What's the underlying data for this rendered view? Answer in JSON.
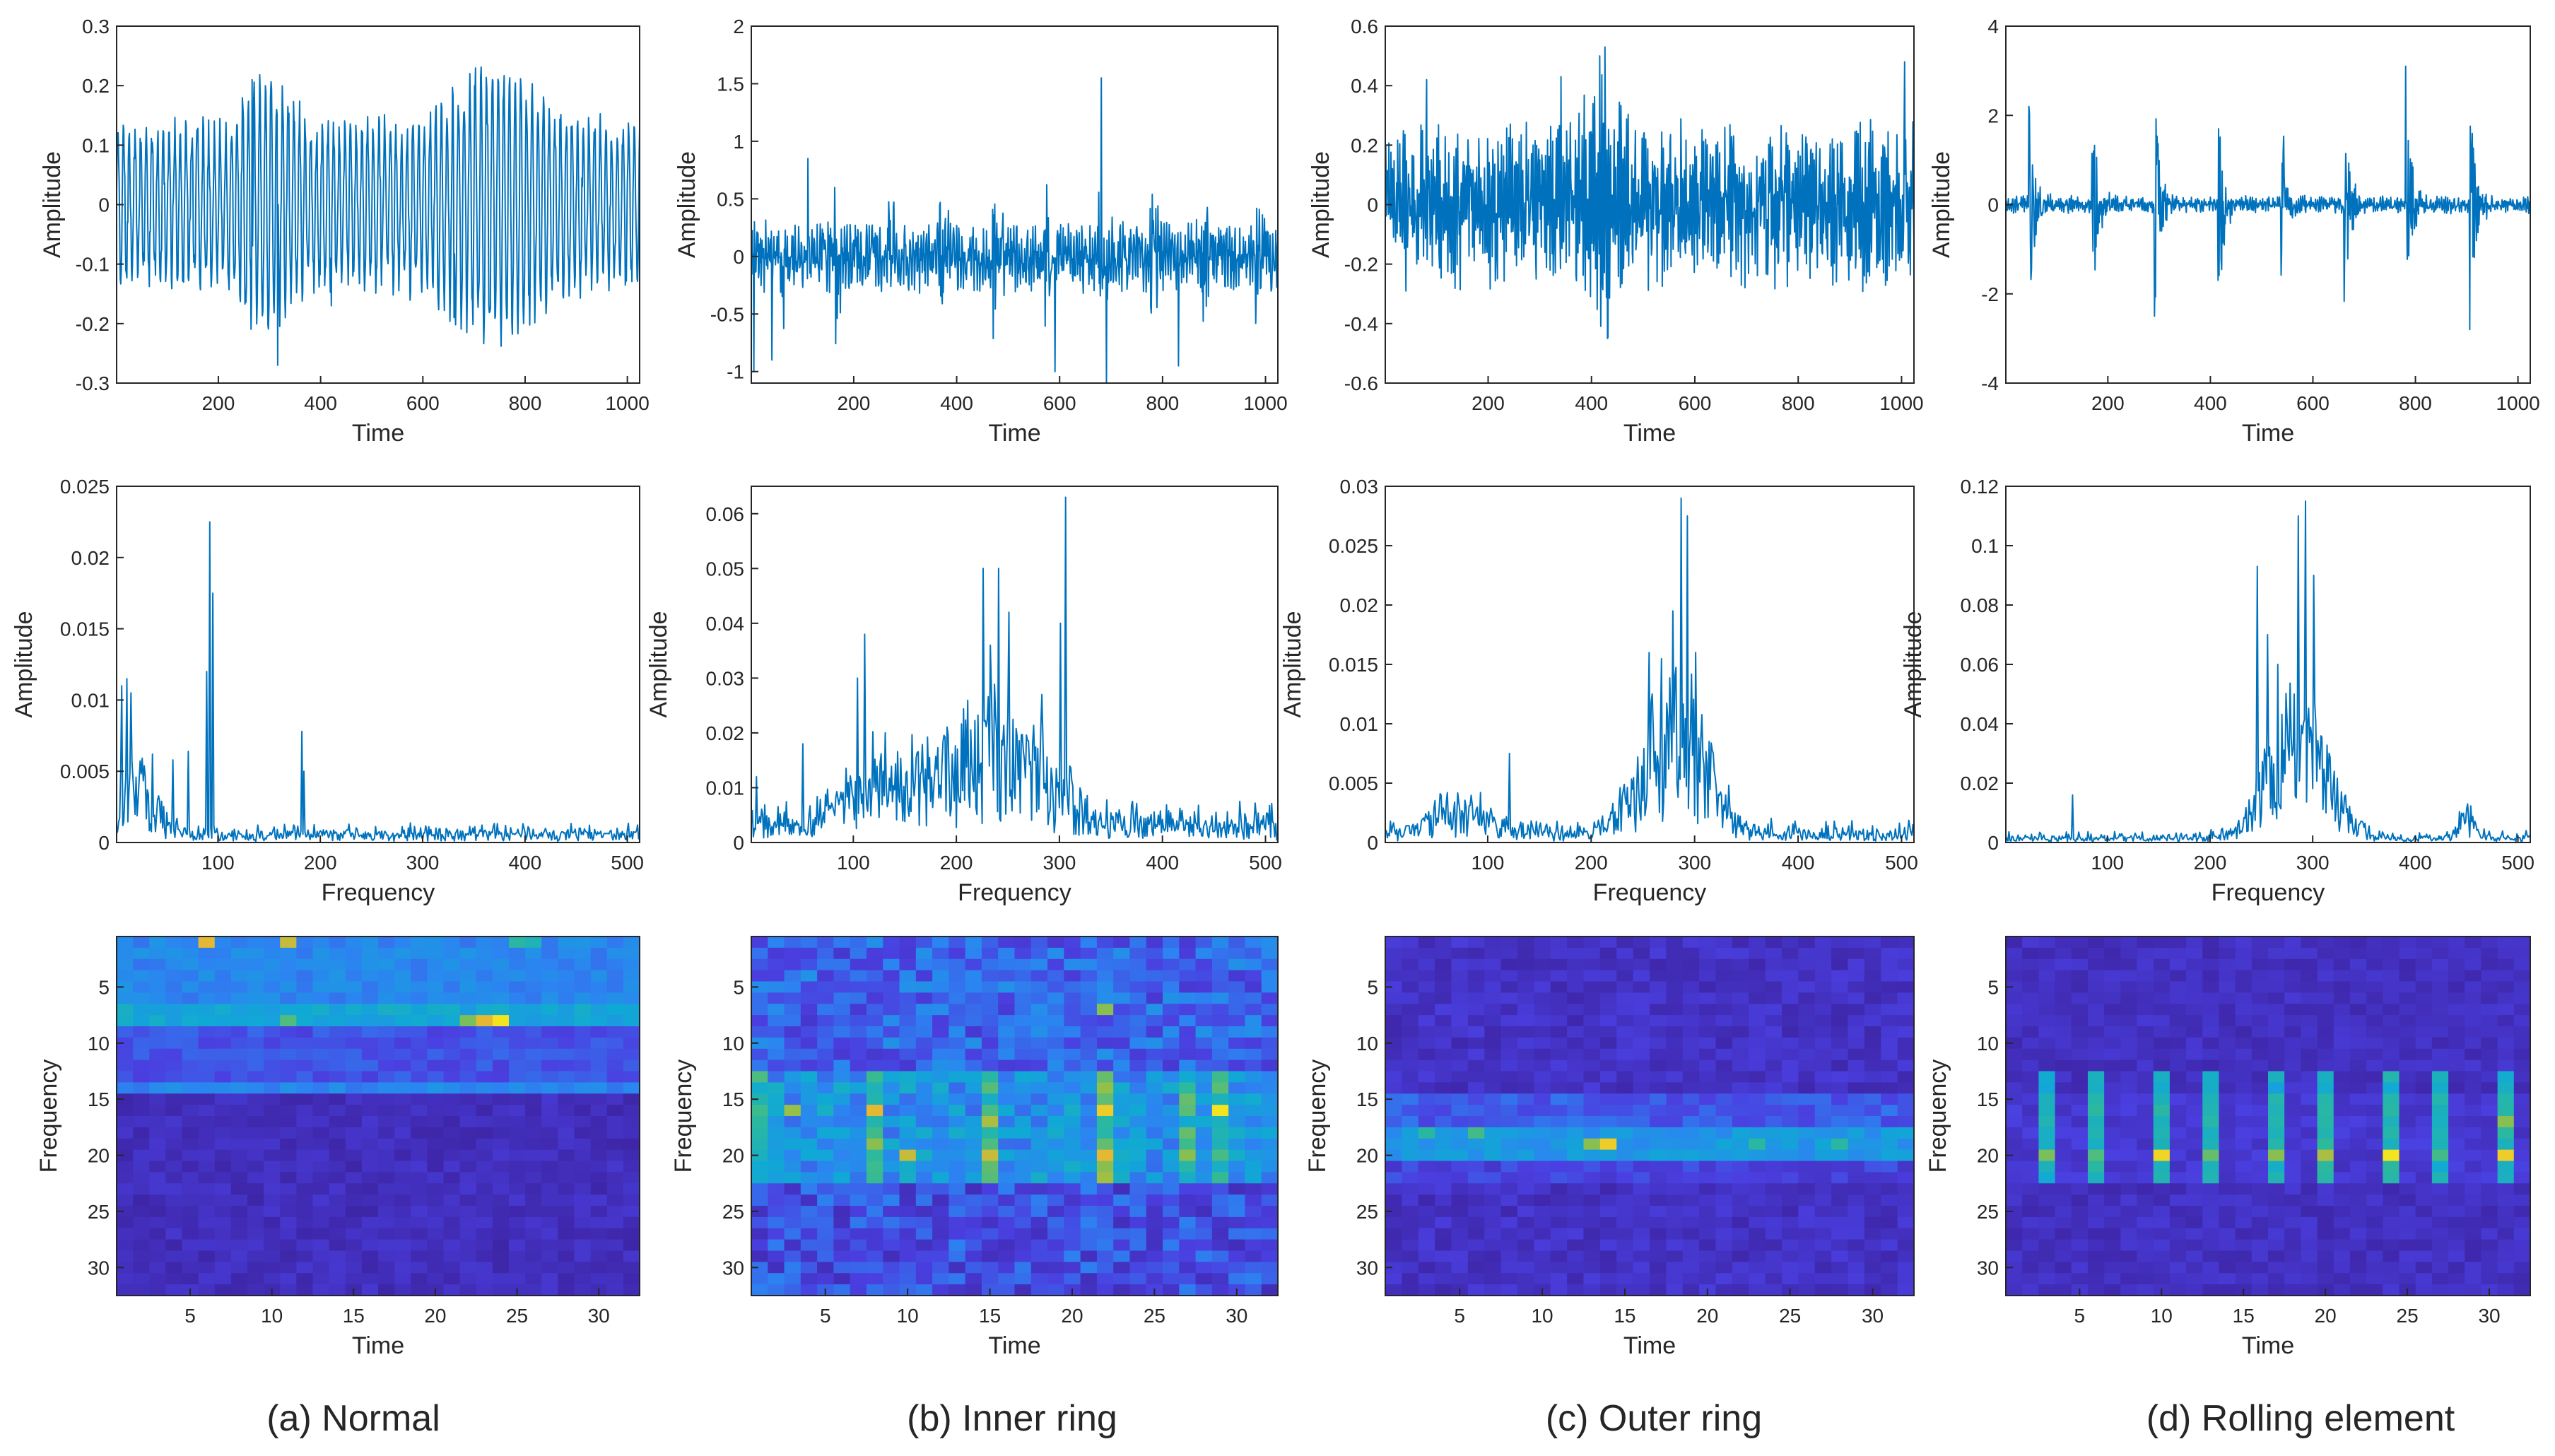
{
  "figure": {
    "columns": [
      {
        "id": "normal",
        "caption": "(a) Normal"
      },
      {
        "id": "inner",
        "caption": "(b) Inner ring"
      },
      {
        "id": "outer",
        "caption": "(c) Outer ring"
      },
      {
        "id": "rolling",
        "caption": "(d) Rolling element"
      }
    ],
    "colors": {
      "line": "#0072BD",
      "axis": "#262626",
      "colormap": "parula",
      "colormap_stops": [
        "#3E26A8",
        "#4A3FE0",
        "#2C84F1",
        "#10A9D5",
        "#2EBA99",
        "#93C049",
        "#E9B832",
        "#F9FB15"
      ]
    }
  },
  "chart_data": [
    {
      "type": "line",
      "panel": "time-normal",
      "xlabel": "Time",
      "ylabel": "Amplitude",
      "xlim": [
        1,
        1024
      ],
      "ylim": [
        -0.3,
        0.3
      ],
      "xticks": [
        200,
        400,
        600,
        800,
        1000
      ],
      "yticks": [
        -0.3,
        -0.2,
        -0.1,
        0,
        0.1,
        0.2,
        0.3
      ],
      "signal": {
        "n": 1024,
        "noise": 0.02,
        "envelope_base": 0.05,
        "tones": [
          {
            "period": 11.1,
            "amp": 0.07
          }
        ],
        "envelope_bumps": [
          {
            "center": 290,
            "width": 60,
            "amp": 0.08
          },
          {
            "center": 740,
            "width": 110,
            "amp": 0.09
          }
        ],
        "spikes": [
          {
            "at": 265,
            "value": 0.21
          },
          {
            "at": 315,
            "value": -0.27
          },
          {
            "at": 700,
            "value": 0.2
          },
          {
            "at": 735,
            "value": 0.21
          },
          {
            "at": 660,
            "value": -0.19
          },
          {
            "at": 420,
            "value": -0.17
          }
        ],
        "seed": 11
      }
    },
    {
      "type": "line",
      "panel": "time-inner",
      "xlabel": "Time",
      "ylabel": "Amplitude",
      "xlim": [
        1,
        1024
      ],
      "ylim": [
        -1.1,
        2
      ],
      "xticks": [
        200,
        400,
        600,
        800,
        1000
      ],
      "yticks": [
        -1,
        -0.5,
        0,
        0.5,
        1,
        1.5,
        2
      ],
      "signal": {
        "n": 1024,
        "noise": 0.12,
        "envelope_base": 0.05,
        "impulse_period": 102,
        "impulse_offset": 60,
        "impulse_amp": 0.65,
        "impulse_decay": 14,
        "tones": [
          {
            "period": 5.3,
            "amp": 0.08
          }
        ],
        "spikes": [
          {
            "at": 680,
            "value": 1.55
          },
          {
            "at": 690,
            "value": -1.1
          },
          {
            "at": 5,
            "value": -1.0
          },
          {
            "at": 590,
            "value": -1.0
          },
          {
            "at": 830,
            "value": -0.95
          },
          {
            "at": 110,
            "value": 0.85
          },
          {
            "at": 40,
            "value": -0.9
          }
        ],
        "seed": 23
      }
    },
    {
      "type": "line",
      "panel": "time-outer",
      "xlabel": "Time",
      "ylabel": "Amplitude",
      "xlim": [
        1,
        1024
      ],
      "ylim": [
        -0.6,
        0.6
      ],
      "xticks": [
        200,
        400,
        600,
        800,
        1000
      ],
      "yticks": [
        -0.6,
        -0.4,
        -0.2,
        0,
        0.2,
        0.4,
        0.6
      ],
      "signal": {
        "n": 1024,
        "noise": 0.11,
        "envelope_base": 0.06,
        "tones": [
          {
            "period": 3.4,
            "amp": 0.06
          }
        ],
        "envelope_bumps": [
          {
            "center": 420,
            "width": 35,
            "amp": 0.2
          }
        ],
        "spikes": [
          {
            "at": 415,
            "value": 0.5
          },
          {
            "at": 425,
            "value": 0.53
          },
          {
            "at": 430,
            "value": -0.45
          },
          {
            "at": 1005,
            "value": 0.48
          },
          {
            "at": 80,
            "value": 0.42
          },
          {
            "at": 340,
            "value": 0.43
          }
        ],
        "seed": 37
      }
    },
    {
      "type": "line",
      "panel": "time-rolling",
      "xlabel": "Time",
      "ylabel": "Amplitude",
      "xlim": [
        1,
        1024
      ],
      "ylim": [
        -4,
        4
      ],
      "xticks": [
        200,
        400,
        600,
        800,
        1000
      ],
      "yticks": [
        -4,
        -2,
        0,
        2,
        4
      ],
      "signal": {
        "n": 1024,
        "noise": 0.08,
        "envelope_base": 0.03,
        "impulse_period": 123,
        "impulse_offset": 45,
        "impulse_amp": 2.4,
        "impulse_decay": 12,
        "tones": [
          {
            "period": 4.1,
            "amp": 0.05
          }
        ],
        "spikes": [
          {
            "at": 45,
            "value": 2.2
          },
          {
            "at": 290,
            "value": -2.5
          },
          {
            "at": 780,
            "value": 3.1
          },
          {
            "at": 905,
            "value": -2.8
          }
        ],
        "seed": 41
      }
    },
    {
      "type": "line",
      "panel": "freq-normal",
      "xlabel": "Frequency",
      "ylabel": "Amplitude",
      "xlim": [
        1,
        512
      ],
      "ylim": [
        0,
        0.025
      ],
      "xticks": [
        100,
        200,
        300,
        400,
        500
      ],
      "yticks": [
        0,
        0.005,
        0.01,
        0.015,
        0.02,
        0.025
      ],
      "spectrum": {
        "n": 512,
        "floor": 0.0004,
        "noise": 0.001,
        "bands": [
          {
            "center": 20,
            "width": 25,
            "amp": 0.003
          }
        ],
        "peaks": [
          {
            "at": 5,
            "value": 0.011
          },
          {
            "at": 10,
            "value": 0.0115
          },
          {
            "at": 14,
            "value": 0.0105
          },
          {
            "at": 91,
            "value": 0.0225
          },
          {
            "at": 94,
            "value": 0.0175
          },
          {
            "at": 88,
            "value": 0.012
          },
          {
            "at": 181,
            "value": 0.0078
          },
          {
            "at": 183,
            "value": 0.005
          },
          {
            "at": 35,
            "value": 0.0062
          },
          {
            "at": 55,
            "value": 0.0058
          },
          {
            "at": 70,
            "value": 0.0064
          }
        ],
        "seed": 51
      }
    },
    {
      "type": "line",
      "panel": "freq-inner",
      "xlabel": "Frequency",
      "ylabel": "Amplitude",
      "xlim": [
        1,
        512
      ],
      "ylim": [
        0,
        0.065
      ],
      "xticks": [
        100,
        200,
        300,
        400,
        500
      ],
      "yticks": [
        0,
        0.01,
        0.02,
        0.03,
        0.04,
        0.05,
        0.06
      ],
      "spectrum": {
        "n": 512,
        "floor": 0.002,
        "noise": 0.006,
        "bands": [
          {
            "center": 230,
            "width": 70,
            "amp": 0.012
          },
          {
            "center": 120,
            "width": 40,
            "amp": 0.006
          }
        ],
        "peaks": [
          {
            "at": 5,
            "value": 0.012
          },
          {
            "at": 50,
            "value": 0.018
          },
          {
            "at": 103,
            "value": 0.03
          },
          {
            "at": 110,
            "value": 0.038
          },
          {
            "at": 130,
            "value": 0.02
          },
          {
            "at": 225,
            "value": 0.05
          },
          {
            "at": 240,
            "value": 0.05
          },
          {
            "at": 250,
            "value": 0.042
          },
          {
            "at": 232,
            "value": 0.036
          },
          {
            "at": 282,
            "value": 0.027
          },
          {
            "at": 305,
            "value": 0.063
          },
          {
            "at": 300,
            "value": 0.04
          }
        ],
        "seed": 61
      }
    },
    {
      "type": "line",
      "panel": "freq-outer",
      "xlabel": "Frequency",
      "ylabel": "Amplitude",
      "xlim": [
        1,
        512
      ],
      "ylim": [
        0,
        0.03
      ],
      "xticks": [
        100,
        200,
        300,
        400,
        500
      ],
      "yticks": [
        0,
        0.005,
        0.01,
        0.015,
        0.02,
        0.025,
        0.03
      ],
      "spectrum": {
        "n": 512,
        "floor": 0.0005,
        "noise": 0.0015,
        "bands": [
          {
            "center": 280,
            "width": 40,
            "amp": 0.009
          },
          {
            "center": 70,
            "width": 40,
            "amp": 0.0015
          }
        ],
        "peaks": [
          {
            "at": 120,
            "value": 0.0075
          },
          {
            "at": 255,
            "value": 0.016
          },
          {
            "at": 278,
            "value": 0.0195
          },
          {
            "at": 286,
            "value": 0.029
          },
          {
            "at": 292,
            "value": 0.0275
          },
          {
            "at": 300,
            "value": 0.016
          },
          {
            "at": 60,
            "value": 0.0042
          }
        ],
        "seed": 71
      }
    },
    {
      "type": "line",
      "panel": "freq-rolling",
      "xlabel": "Frequency",
      "ylabel": "Amplitude",
      "xlim": [
        1,
        512
      ],
      "ylim": [
        0,
        0.12
      ],
      "xticks": [
        100,
        200,
        300,
        400,
        500
      ],
      "yticks": [
        0,
        0.02,
        0.04,
        0.06,
        0.08,
        0.1,
        0.12
      ],
      "spectrum": {
        "n": 512,
        "floor": 0.001,
        "noise": 0.003,
        "bands": [
          {
            "center": 285,
            "width": 40,
            "amp": 0.03
          },
          {
            "center": 450,
            "width": 12,
            "amp": 0.006
          }
        ],
        "peaks": [
          {
            "at": 245,
            "value": 0.093
          },
          {
            "at": 255,
            "value": 0.07
          },
          {
            "at": 285,
            "value": 0.11
          },
          {
            "at": 292,
            "value": 0.115
          },
          {
            "at": 300,
            "value": 0.09
          },
          {
            "at": 265,
            "value": 0.06
          },
          {
            "at": 65,
            "value": 0.016
          },
          {
            "at": 450,
            "value": 0.013
          }
        ],
        "seed": 81
      }
    },
    {
      "type": "heatmap",
      "panel": "stft-normal",
      "xlabel": "Time",
      "ylabel": "Frequency",
      "rows": 32,
      "cols": 32,
      "xticks": [
        5,
        10,
        15,
        20,
        25,
        30
      ],
      "yticks": [
        5,
        10,
        15,
        20,
        25,
        30
      ],
      "intensity": {
        "background": 0.05,
        "noise": 0.05,
        "bands": [
          {
            "row_from": 1,
            "row_to": 6,
            "level": 0.3
          },
          {
            "row_from": 7,
            "row_to": 8,
            "level": 0.42
          },
          {
            "row_from": 9,
            "row_to": 13,
            "level": 0.18
          },
          {
            "row_from": 14,
            "row_to": 14,
            "level": 0.3
          }
        ],
        "col_columns": [],
        "hotspots": [
          {
            "row": 1,
            "col": 6,
            "value": 0.85
          },
          {
            "row": 1,
            "col": 11,
            "value": 0.8
          },
          {
            "row": 8,
            "col": 11,
            "value": 0.62
          },
          {
            "row": 8,
            "col": 23,
            "value": 0.85
          },
          {
            "row": 8,
            "col": 24,
            "value": 0.95
          },
          {
            "row": 1,
            "col": 25,
            "value": 0.55
          },
          {
            "row": 1,
            "col": 26,
            "value": 0.5
          },
          {
            "row": 8,
            "col": 22,
            "value": 0.68
          }
        ],
        "seed": 91
      }
    },
    {
      "type": "heatmap",
      "panel": "stft-inner",
      "xlabel": "Time",
      "ylabel": "Frequency",
      "rows": 32,
      "cols": 32,
      "xticks": [
        5,
        10,
        15,
        20,
        25,
        30
      ],
      "yticks": [
        5,
        10,
        15,
        20,
        25,
        30
      ],
      "intensity": {
        "background": 0.16,
        "noise": 0.12,
        "bands": [
          {
            "row_from": 1,
            "row_to": 12,
            "level": 0.22
          },
          {
            "row_from": 13,
            "row_to": 22,
            "level": 0.35
          },
          {
            "row_from": 23,
            "row_to": 32,
            "level": 0.08
          }
        ],
        "col_columns": [
          {
            "col": 1,
            "level": 0.18
          },
          {
            "col": 8,
            "level": 0.25
          },
          {
            "col": 15,
            "level": 0.22
          },
          {
            "col": 22,
            "level": 0.3
          },
          {
            "col": 27,
            "level": 0.2
          },
          {
            "col": 29,
            "level": 0.2
          }
        ],
        "hotspots": [
          {
            "row": 16,
            "col": 8,
            "value": 0.85
          },
          {
            "row": 16,
            "col": 22,
            "value": 0.9
          },
          {
            "row": 20,
            "col": 22,
            "value": 0.85
          },
          {
            "row": 16,
            "col": 29,
            "value": 0.95
          },
          {
            "row": 20,
            "col": 10,
            "value": 0.8
          },
          {
            "row": 20,
            "col": 15,
            "value": 0.8
          },
          {
            "row": 17,
            "col": 15,
            "value": 0.75
          },
          {
            "row": 7,
            "col": 22,
            "value": 0.7
          },
          {
            "row": 16,
            "col": 3,
            "value": 0.72
          },
          {
            "row": 20,
            "col": 27,
            "value": 0.7
          }
        ],
        "seed": 101
      }
    },
    {
      "type": "heatmap",
      "panel": "stft-outer",
      "xlabel": "Time",
      "ylabel": "Frequency",
      "rows": 32,
      "cols": 32,
      "xticks": [
        5,
        10,
        15,
        20,
        25,
        30
      ],
      "yticks": [
        5,
        10,
        15,
        20,
        25,
        30
      ],
      "intensity": {
        "background": 0.07,
        "noise": 0.06,
        "bands": [
          {
            "row_from": 1,
            "row_to": 13,
            "level": 0.06
          },
          {
            "row_from": 15,
            "row_to": 17,
            "level": 0.2
          },
          {
            "row_from": 18,
            "row_to": 20,
            "level": 0.36
          },
          {
            "row_from": 21,
            "row_to": 22,
            "level": 0.14
          }
        ],
        "col_columns": [],
        "hotspots": [
          {
            "row": 19,
            "col": 14,
            "value": 0.9
          },
          {
            "row": 19,
            "col": 13,
            "value": 0.7
          },
          {
            "row": 18,
            "col": 3,
            "value": 0.55
          },
          {
            "row": 18,
            "col": 6,
            "value": 0.6
          },
          {
            "row": 19,
            "col": 23,
            "value": 0.55
          },
          {
            "row": 19,
            "col": 28,
            "value": 0.55
          }
        ],
        "seed": 111
      }
    },
    {
      "type": "heatmap",
      "panel": "stft-rolling",
      "xlabel": "Time",
      "ylabel": "Frequency",
      "rows": 32,
      "cols": 32,
      "xticks": [
        5,
        10,
        15,
        20,
        25,
        30
      ],
      "yticks": [
        5,
        10,
        15,
        20,
        25,
        30
      ],
      "intensity": {
        "background": 0.06,
        "noise": 0.05,
        "bands": [
          {
            "row_from": 15,
            "row_to": 22,
            "level": 0.1
          }
        ],
        "col_columns": [
          {
            "col": 3,
            "level": 0.38
          },
          {
            "col": 6,
            "level": 0.42
          },
          {
            "col": 10,
            "level": 0.42
          },
          {
            "col": 13,
            "level": 0.42
          },
          {
            "col": 17,
            "level": 0.38
          },
          {
            "col": 20,
            "level": 0.42
          },
          {
            "col": 24,
            "level": 0.42
          },
          {
            "col": 27,
            "level": 0.38
          },
          {
            "col": 31,
            "level": 0.42
          }
        ],
        "hotspots": [
          {
            "row": 20,
            "col": 10,
            "value": 0.92
          },
          {
            "row": 20,
            "col": 24,
            "value": 0.95
          },
          {
            "row": 20,
            "col": 31,
            "value": 0.9
          },
          {
            "row": 20,
            "col": 20,
            "value": 0.75
          },
          {
            "row": 20,
            "col": 3,
            "value": 0.68
          },
          {
            "row": 20,
            "col": 17,
            "value": 0.7
          },
          {
            "row": 17,
            "col": 31,
            "value": 0.7
          },
          {
            "row": 20,
            "col": 6,
            "value": 0.62
          },
          {
            "row": 20,
            "col": 13,
            "value": 0.65
          },
          {
            "row": 20,
            "col": 27,
            "value": 0.6
          }
        ],
        "seed": 121
      }
    }
  ]
}
